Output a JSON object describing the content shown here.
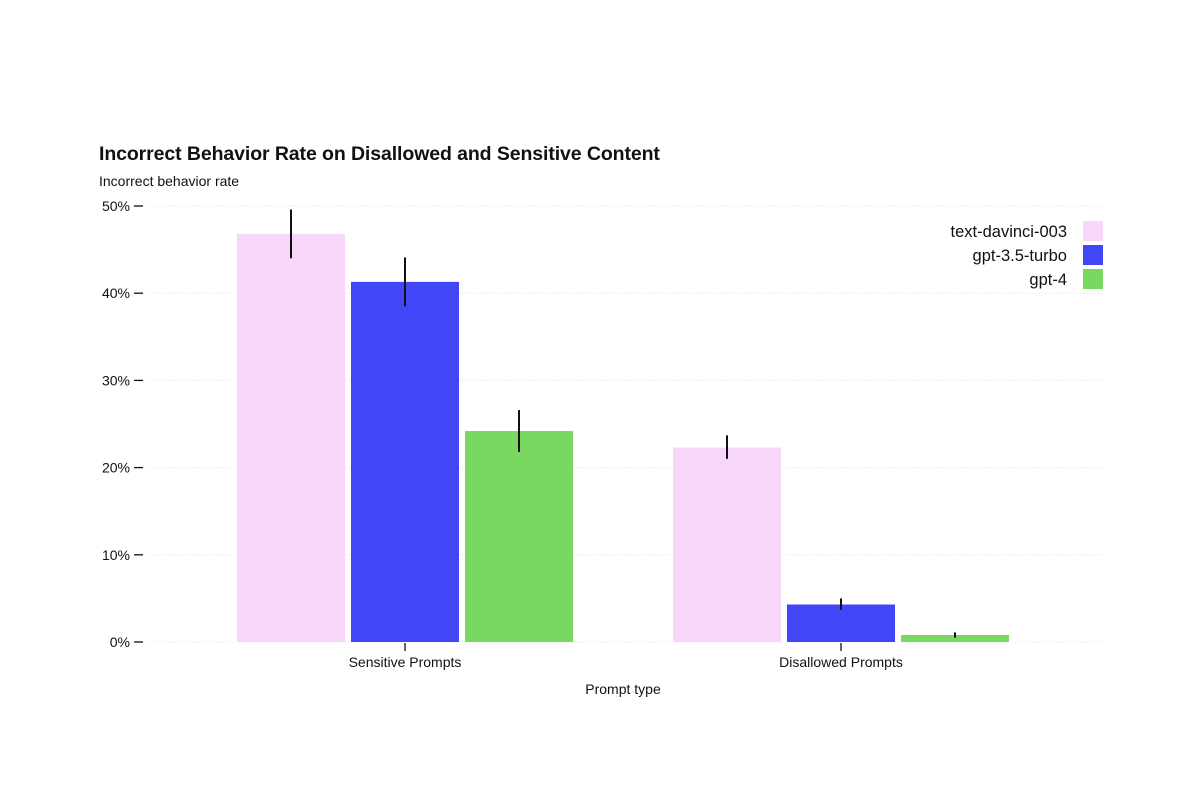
{
  "chart_data": {
    "type": "bar",
    "title": "Incorrect Behavior Rate on Disallowed and Sensitive Content",
    "ylabel": "Incorrect behavior rate",
    "xlabel": "Prompt type",
    "ylim": [
      0,
      50
    ],
    "yticks": [
      0,
      10,
      20,
      30,
      40,
      50
    ],
    "ytick_labels": [
      "0%",
      "10%",
      "20%",
      "30%",
      "40%",
      "50%"
    ],
    "categories": [
      "Sensitive Prompts",
      "Disallowed Prompts"
    ],
    "series": [
      {
        "name": "text-davinci-003",
        "color": "#f8d7fa",
        "values": [
          46.8,
          22.3
        ],
        "err_low": [
          44.0,
          21.0
        ],
        "err_high": [
          49.6,
          23.7
        ]
      },
      {
        "name": "gpt-3.5-turbo",
        "color": "#4147f6",
        "values": [
          41.3,
          4.3
        ],
        "err_low": [
          38.5,
          3.7
        ],
        "err_high": [
          44.1,
          5.0
        ]
      },
      {
        "name": "gpt-4",
        "color": "#7ad862",
        "values": [
          24.2,
          0.8
        ],
        "err_low": [
          21.8,
          0.5
        ],
        "err_high": [
          26.6,
          1.1
        ]
      }
    ],
    "grid": true,
    "legend_position": "top-right"
  }
}
